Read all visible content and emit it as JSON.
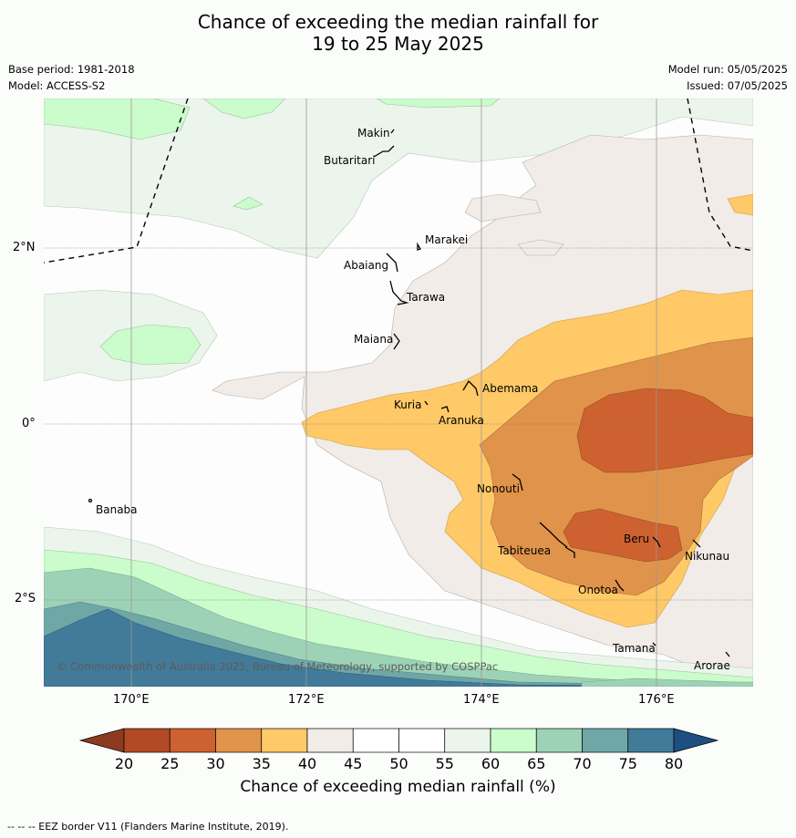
{
  "title_line1": "Chance of exceeding the median rainfall for",
  "title_line2": "19 to 25 May 2025",
  "meta": {
    "base_period": "Base period: 1981-2018",
    "model": "Model: ACCESS-S2",
    "model_run": "Model run: 05/05/2025",
    "issued": "Issued: 07/05/2025"
  },
  "lon_labels": [
    "170°E",
    "172°E",
    "174°E",
    "176°E"
  ],
  "lat_labels": [
    "2°N",
    "0°",
    "2°S"
  ],
  "places": {
    "makin": "Makin",
    "butaritari": "Butaritari",
    "marakei": "Marakei",
    "abaiang": "Abaiang",
    "tarawa": "Tarawa",
    "maiana": "Maiana",
    "abemama": "Abemama",
    "kuria": "Kuria",
    "aranuka": "Aranuka",
    "banaba": "Banaba",
    "nonouti": "Nonouti",
    "beru": "Beru",
    "tabiteuea": "Tabiteuea",
    "nikunau": "Nikunau",
    "onotoa": "Onotoa",
    "tamana": "Tamana",
    "arorae": "Arorae"
  },
  "copyright": "© Commonwealth of Australia 2025, Bureau of Meteorology, supported by COSPPac",
  "colorbar": {
    "label": "Chance of exceeding median rainfall (%)",
    "ticks": [
      "20",
      "25",
      "30",
      "35",
      "40",
      "45",
      "50",
      "55",
      "60",
      "65",
      "70",
      "75",
      "80"
    ],
    "colors": [
      "#8c3b1f",
      "#b24a26",
      "#cd6130",
      "#e0934a",
      "#fec966",
      "#f1ece8",
      "#ffffff",
      "#ffffff",
      "#ecf5ec",
      "#cbfccb",
      "#9ed2b7",
      "#6fa7a7",
      "#427a99",
      "#1d4f80"
    ]
  },
  "footer": "--  --  -- EEZ border V11 (Flanders Marine Institute, 2019)."
}
